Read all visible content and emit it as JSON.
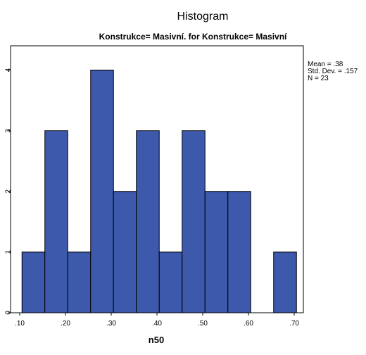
{
  "chart_data": {
    "type": "bar",
    "title": "Histogram",
    "subtitle": "Konstrukce= Masivní. for Konstrukce= Masivní",
    "xlabel": "n50",
    "ylabel": "",
    "x_ticks": [
      ".10",
      ".20",
      ".30",
      ".40",
      ".50",
      ".60",
      ".70"
    ],
    "y_ticks": [
      "0",
      "1",
      "2",
      "3",
      "4"
    ],
    "xlim": [
      0.08,
      0.72
    ],
    "ylim": [
      0,
      4.4
    ],
    "bin_width": 0.05,
    "bin_starts": [
      0.105,
      0.155,
      0.205,
      0.255,
      0.305,
      0.355,
      0.405,
      0.455,
      0.505,
      0.555,
      0.605,
      0.655
    ],
    "counts": [
      1,
      3,
      1,
      4,
      2,
      3,
      1,
      3,
      2,
      2,
      0,
      1
    ],
    "stats": [
      "Mean = .38",
      "Std. Dev. = .157",
      "N = 23"
    ],
    "grid": false,
    "bar_color": "#3d59ab",
    "bar_edge": "#000000"
  }
}
